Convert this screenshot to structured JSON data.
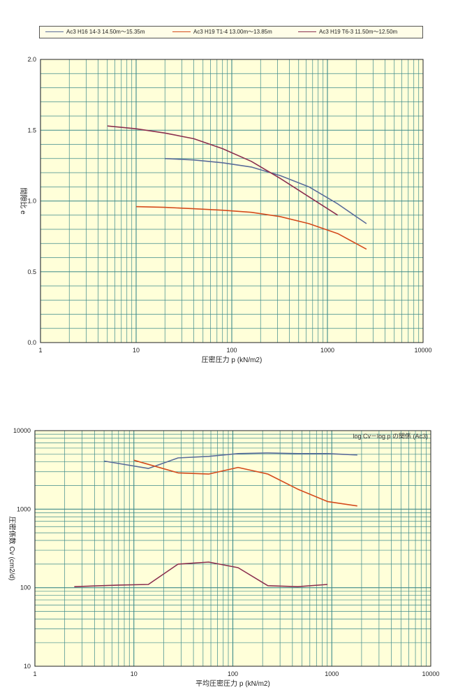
{
  "legend": [
    {
      "label": "Ac3 H16 14-3 14.50m〜15.35m",
      "color": "#5a6c9a"
    },
    {
      "label": "Ac3 H19 T1-4 13.00m〜13.85m",
      "color": "#d44a1c"
    },
    {
      "label": "Ac3 H19 T6-3 11.50m〜12.50m",
      "color": "#8b2f4f"
    }
  ],
  "colors": {
    "plot_bg": "#ffffd9",
    "grid": "#3d8a8a",
    "frame": "#222222"
  },
  "chart_data": [
    {
      "type": "line",
      "title": "",
      "xlabel": "圧密圧力 p (kN/m2)",
      "ylabel": "間隙比 e",
      "x_scale": "log",
      "xlim": [
        1,
        10000
      ],
      "ylim": [
        0.0,
        2.0
      ],
      "x_ticks": [
        "1",
        "10",
        "100",
        "1000",
        "10000"
      ],
      "y_ticks": [
        "0.0",
        "0.5",
        "1.0",
        "1.5",
        "2.0"
      ],
      "grid": true,
      "series": [
        {
          "name": "Ac3 H16 14-3 14.50m〜15.35m",
          "color": "#5a6c9a",
          "x": [
            20,
            40,
            80,
            160,
            320,
            640,
            1280,
            2560
          ],
          "y": [
            1.3,
            1.29,
            1.27,
            1.24,
            1.18,
            1.1,
            0.98,
            0.84
          ]
        },
        {
          "name": "Ac3 H19 T1-4 13.00m〜13.85m",
          "color": "#d44a1c",
          "x": [
            10,
            20,
            40,
            80,
            160,
            320,
            640,
            1280,
            2560
          ],
          "y": [
            0.96,
            0.955,
            0.945,
            0.935,
            0.92,
            0.89,
            0.84,
            0.77,
            0.66
          ]
        },
        {
          "name": "Ac3 H19 T6-3 11.50m〜12.50m",
          "color": "#8b2f4f",
          "x": [
            5,
            10,
            20,
            40,
            80,
            160,
            320,
            640,
            1280
          ],
          "y": [
            1.53,
            1.51,
            1.48,
            1.44,
            1.37,
            1.28,
            1.16,
            1.03,
            0.9
          ]
        }
      ]
    },
    {
      "type": "line",
      "title": "log Cv－log p の関係 (Ac3)",
      "xlabel": "平均圧密圧力 p (kN/m2)",
      "ylabel": "圧密係数 Cv (cm2/d)",
      "x_scale": "log",
      "y_scale": "log",
      "xlim": [
        1,
        10000
      ],
      "ylim": [
        10,
        10000
      ],
      "x_ticks": [
        "1",
        "10",
        "100",
        "1000",
        "10000"
      ],
      "y_ticks": [
        "10",
        "100",
        "1000",
        "10000"
      ],
      "grid": true,
      "series": [
        {
          "name": "Ac3 H16 14-3 14.50m〜15.35m",
          "color": "#5a6c9a",
          "x": [
            5,
            14,
            28,
            57,
            113,
            226,
            453,
            905,
            1810
          ],
          "y": [
            4100,
            3300,
            4500,
            4700,
            5100,
            5200,
            5100,
            5100,
            4900
          ]
        },
        {
          "name": "Ac3 H19 T1-4 13.00m〜13.85m",
          "color": "#d44a1c",
          "x": [
            10,
            28,
            57,
            113,
            226,
            453,
            905,
            1810
          ],
          "y": [
            4200,
            2900,
            2800,
            3400,
            2800,
            1800,
            1250,
            1100
          ]
        },
        {
          "name": "Ac3 H19 T6-3 11.50m〜12.50m",
          "color": "#8b2f4f",
          "x": [
            2.5,
            7,
            14,
            28,
            57,
            113,
            226,
            453,
            905
          ],
          "y": [
            103,
            108,
            110,
            200,
            212,
            180,
            106,
            103,
            110
          ]
        }
      ]
    }
  ]
}
